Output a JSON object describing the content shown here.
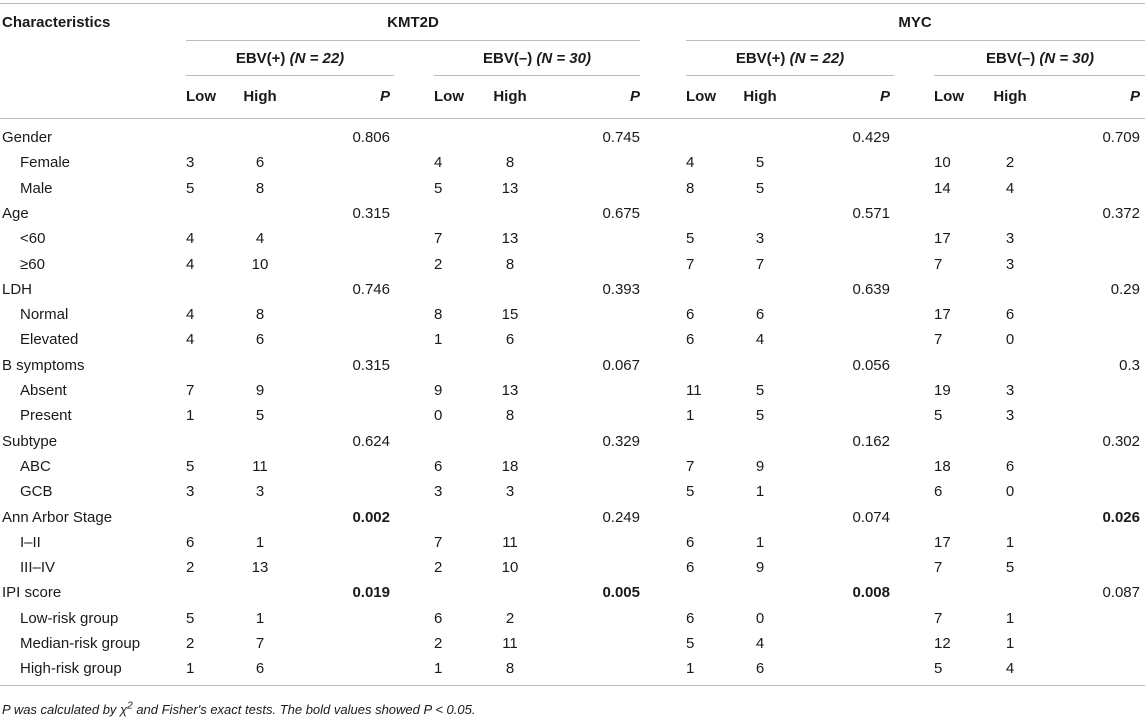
{
  "table": {
    "characteristics_header": "Characteristics",
    "gene_groups": [
      "KMT2D",
      "MYC"
    ],
    "subgroups": [
      {
        "ebv": "EBV(+)",
        "n": "(N = 22)"
      },
      {
        "ebv": "EBV(–)",
        "n": "(N = 30)"
      },
      {
        "ebv": "EBV(+)",
        "n": "(N = 22)"
      },
      {
        "ebv": "EBV(–)",
        "n": "(N = 30)"
      }
    ],
    "col_labels": {
      "low": "Low",
      "high": "High",
      "p": "P"
    },
    "rows": [
      {
        "label": "Gender",
        "indent": false,
        "cells": [
          [
            "",
            "",
            "0.806",
            false
          ],
          [
            "",
            "",
            "0.745",
            false
          ],
          [
            "",
            "",
            "0.429",
            false
          ],
          [
            "",
            "",
            "0.709",
            false
          ]
        ]
      },
      {
        "label": "Female",
        "indent": true,
        "cells": [
          [
            "3",
            "6",
            "",
            false
          ],
          [
            "4",
            "8",
            "",
            false
          ],
          [
            "4",
            "5",
            "",
            false
          ],
          [
            "10",
            "2",
            "",
            false
          ]
        ]
      },
      {
        "label": "Male",
        "indent": true,
        "cells": [
          [
            "5",
            "8",
            "",
            false
          ],
          [
            "5",
            "13",
            "",
            false
          ],
          [
            "8",
            "5",
            "",
            false
          ],
          [
            "14",
            "4",
            "",
            false
          ]
        ]
      },
      {
        "label": "Age",
        "indent": false,
        "cells": [
          [
            "",
            "",
            "0.315",
            false
          ],
          [
            "",
            "",
            "0.675",
            false
          ],
          [
            "",
            "",
            "0.571",
            false
          ],
          [
            "",
            "",
            "0.372",
            false
          ]
        ]
      },
      {
        "label": "<60",
        "indent": true,
        "cells": [
          [
            "4",
            "4",
            "",
            false
          ],
          [
            "7",
            "13",
            "",
            false
          ],
          [
            "5",
            "3",
            "",
            false
          ],
          [
            "17",
            "3",
            "",
            false
          ]
        ]
      },
      {
        "label": "≥60",
        "indent": true,
        "cells": [
          [
            "4",
            "10",
            "",
            false
          ],
          [
            "2",
            "8",
            "",
            false
          ],
          [
            "7",
            "7",
            "",
            false
          ],
          [
            "7",
            "3",
            "",
            false
          ]
        ]
      },
      {
        "label": "LDH",
        "indent": false,
        "cells": [
          [
            "",
            "",
            "0.746",
            false
          ],
          [
            "",
            "",
            "0.393",
            false
          ],
          [
            "",
            "",
            "0.639",
            false
          ],
          [
            "",
            "",
            "0.29",
            false
          ]
        ]
      },
      {
        "label": "Normal",
        "indent": true,
        "cells": [
          [
            "4",
            "8",
            "",
            false
          ],
          [
            "8",
            "15",
            "",
            false
          ],
          [
            "6",
            "6",
            "",
            false
          ],
          [
            "17",
            "6",
            "",
            false
          ]
        ]
      },
      {
        "label": "Elevated",
        "indent": true,
        "cells": [
          [
            "4",
            "6",
            "",
            false
          ],
          [
            "1",
            "6",
            "",
            false
          ],
          [
            "6",
            "4",
            "",
            false
          ],
          [
            "7",
            "0",
            "",
            false
          ]
        ]
      },
      {
        "label": "B symptoms",
        "indent": false,
        "cells": [
          [
            "",
            "",
            "0.315",
            false
          ],
          [
            "",
            "",
            "0.067",
            false
          ],
          [
            "",
            "",
            "0.056",
            false
          ],
          [
            "",
            "",
            "0.3",
            false
          ]
        ]
      },
      {
        "label": "Absent",
        "indent": true,
        "cells": [
          [
            "7",
            "9",
            "",
            false
          ],
          [
            "9",
            "13",
            "",
            false
          ],
          [
            "11",
            "5",
            "",
            false
          ],
          [
            "19",
            "3",
            "",
            false
          ]
        ]
      },
      {
        "label": "Present",
        "indent": true,
        "cells": [
          [
            "1",
            "5",
            "",
            false
          ],
          [
            "0",
            "8",
            "",
            false
          ],
          [
            "1",
            "5",
            "",
            false
          ],
          [
            "5",
            "3",
            "",
            false
          ]
        ]
      },
      {
        "label": "Subtype",
        "indent": false,
        "cells": [
          [
            "",
            "",
            "0.624",
            false
          ],
          [
            "",
            "",
            "0.329",
            false
          ],
          [
            "",
            "",
            "0.162",
            false
          ],
          [
            "",
            "",
            "0.302",
            false
          ]
        ]
      },
      {
        "label": "ABC",
        "indent": true,
        "cells": [
          [
            "5",
            "11",
            "",
            false
          ],
          [
            "6",
            "18",
            "",
            false
          ],
          [
            "7",
            "9",
            "",
            false
          ],
          [
            "18",
            "6",
            "",
            false
          ]
        ]
      },
      {
        "label": "GCB",
        "indent": true,
        "cells": [
          [
            "3",
            "3",
            "",
            false
          ],
          [
            "3",
            "3",
            "",
            false
          ],
          [
            "5",
            "1",
            "",
            false
          ],
          [
            "6",
            "0",
            "",
            false
          ]
        ]
      },
      {
        "label": "Ann Arbor Stage",
        "indent": false,
        "cells": [
          [
            "",
            "",
            "0.002",
            true
          ],
          [
            "",
            "",
            "0.249",
            false
          ],
          [
            "",
            "",
            "0.074",
            false
          ],
          [
            "",
            "",
            "0.026",
            true
          ]
        ]
      },
      {
        "label": "I–II",
        "indent": true,
        "cells": [
          [
            "6",
            "1",
            "",
            false
          ],
          [
            "7",
            "11",
            "",
            false
          ],
          [
            "6",
            "1",
            "",
            false
          ],
          [
            "17",
            "1",
            "",
            false
          ]
        ]
      },
      {
        "label": "III–IV",
        "indent": true,
        "cells": [
          [
            "2",
            "13",
            "",
            false
          ],
          [
            "2",
            "10",
            "",
            false
          ],
          [
            "6",
            "9",
            "",
            false
          ],
          [
            "7",
            "5",
            "",
            false
          ]
        ]
      },
      {
        "label": "IPI score",
        "indent": false,
        "cells": [
          [
            "",
            "",
            "0.019",
            true
          ],
          [
            "",
            "",
            "0.005",
            true
          ],
          [
            "",
            "",
            "0.008",
            true
          ],
          [
            "",
            "",
            "0.087",
            false
          ]
        ]
      },
      {
        "label": "Low-risk group",
        "indent": true,
        "cells": [
          [
            "5",
            "1",
            "",
            false
          ],
          [
            "6",
            "2",
            "",
            false
          ],
          [
            "6",
            "0",
            "",
            false
          ],
          [
            "7",
            "1",
            "",
            false
          ]
        ]
      },
      {
        "label": "Median-risk group",
        "indent": true,
        "cells": [
          [
            "2",
            "7",
            "",
            false
          ],
          [
            "2",
            "11",
            "",
            false
          ],
          [
            "5",
            "4",
            "",
            false
          ],
          [
            "12",
            "1",
            "",
            false
          ]
        ]
      },
      {
        "label": "High-risk group",
        "indent": true,
        "cells": [
          [
            "1",
            "6",
            "",
            false
          ],
          [
            "1",
            "8",
            "",
            false
          ],
          [
            "1",
            "6",
            "",
            false
          ],
          [
            "5",
            "4",
            "",
            false
          ]
        ]
      }
    ]
  },
  "footnote": {
    "p": "P",
    "part1": " was calculated by χ",
    "sup": "2",
    "part2": " and Fisher's exact tests. The bold values showed ",
    "p2": "P",
    "part3": " < 0.05."
  }
}
